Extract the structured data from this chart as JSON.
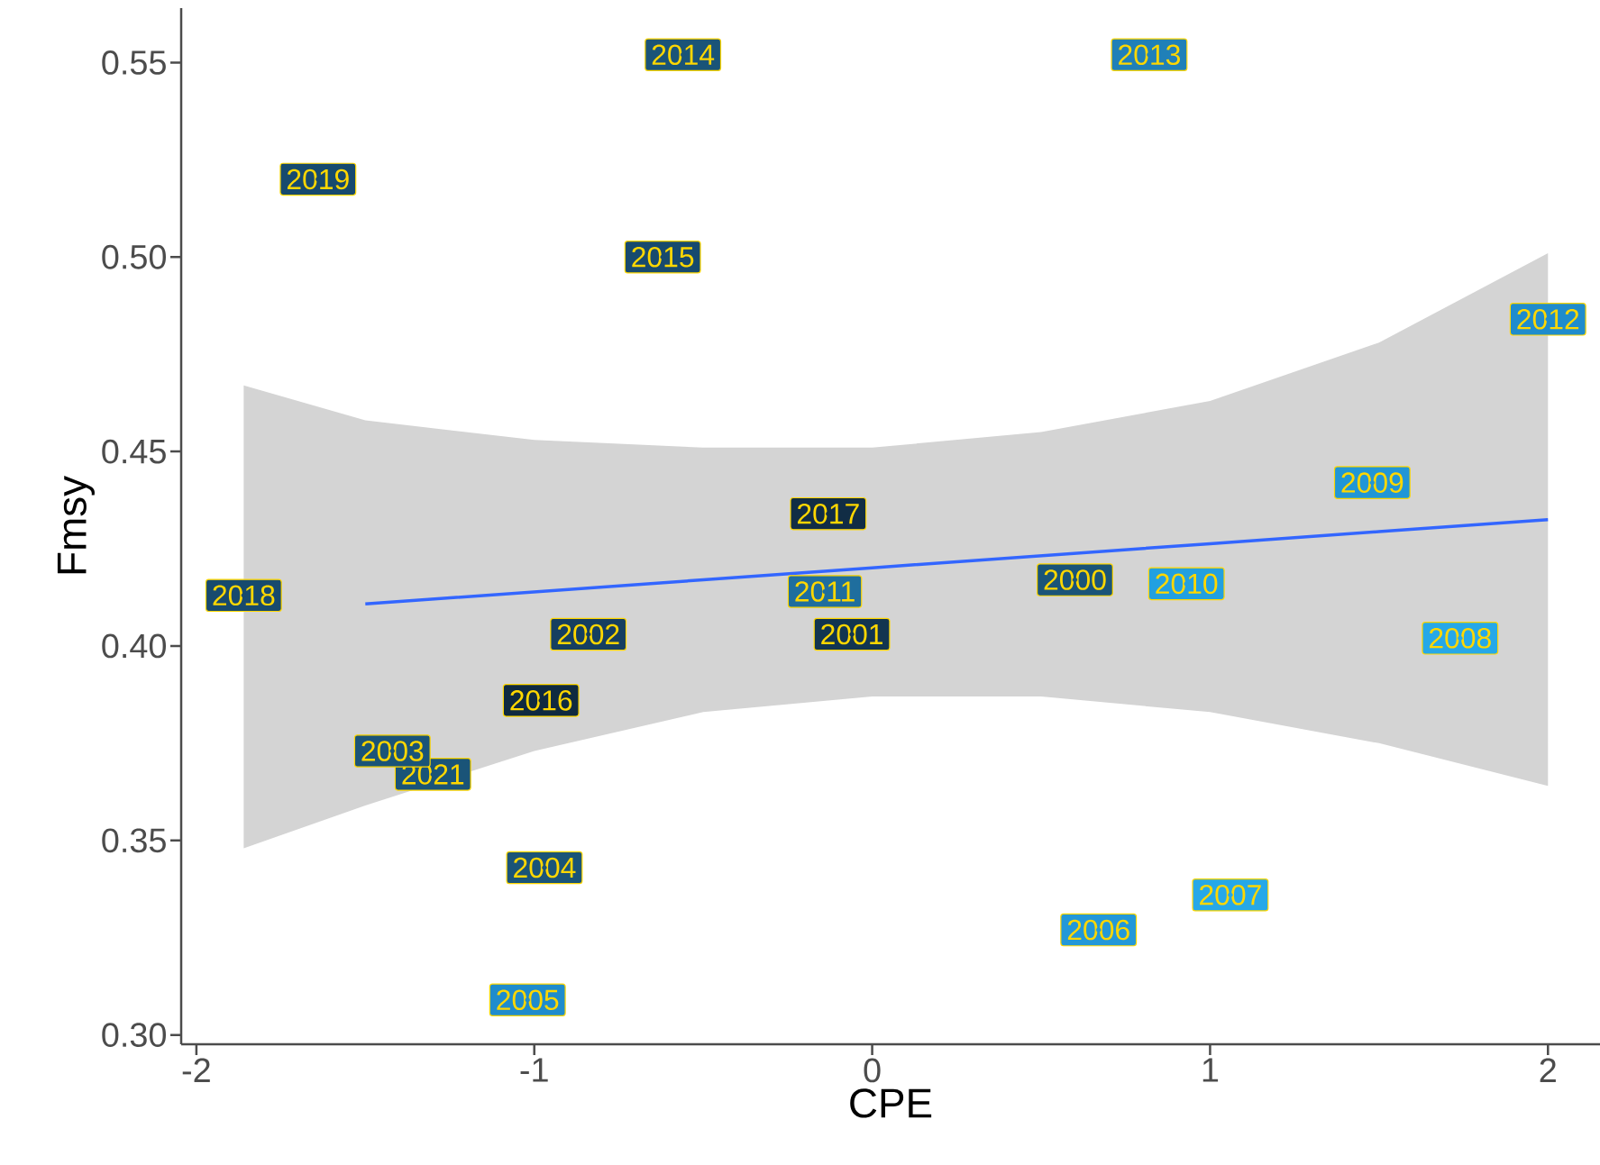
{
  "chart_data": {
    "type": "scatter",
    "xlabel": "CPE",
    "ylabel": "Fmsy",
    "xlim": [
      -2.045,
      2.154
    ],
    "ylim": [
      0.2976,
      0.564
    ],
    "xticks": [
      -2,
      -1,
      0,
      1,
      2
    ],
    "yticks": [
      {
        "value": 0.3,
        "label": "0.30"
      },
      {
        "value": 0.35,
        "label": "0.35"
      },
      {
        "value": 0.4,
        "label": "0.40"
      },
      {
        "value": 0.45,
        "label": "0.45"
      },
      {
        "value": 0.5,
        "label": "0.50"
      },
      {
        "value": 0.55,
        "label": "0.55"
      }
    ],
    "grid": false,
    "series": [
      {
        "type": "line",
        "color": "#3366ff",
        "x": [
          -1.86,
          -1.5,
          -1,
          -0.5,
          0,
          0.5,
          1,
          1.5,
          2
        ],
        "values": [
          null,
          0.4108,
          0.4139,
          0.417,
          0.4201,
          0.4232,
          0.4263,
          0.4294,
          0.4325
        ],
        "lower": [
          0.348,
          0.359,
          0.373,
          0.383,
          0.387,
          0.387,
          0.383,
          0.375,
          0.364
        ],
        "upper": [
          0.467,
          0.458,
          0.453,
          0.451,
          0.451,
          0.455,
          0.463,
          0.478,
          0.501
        ]
      },
      {
        "name": "2014",
        "color": "#1a5478",
        "x": [
          -0.56
        ],
        "values": [
          0.552
        ]
      },
      {
        "name": "2013",
        "color": "#2080b8",
        "x": [
          0.82
        ],
        "values": [
          0.552
        ]
      },
      {
        "name": "2019",
        "color": "#174a6e",
        "x": [
          -1.64
        ],
        "values": [
          0.52
        ]
      },
      {
        "name": "2015",
        "color": "#174a6e",
        "x": [
          -0.62
        ],
        "values": [
          0.5
        ]
      },
      {
        "name": "2012",
        "color": "#1f8ccc",
        "x": [
          2.0
        ],
        "values": [
          0.484
        ]
      },
      {
        "name": "2009",
        "color": "#2196d6",
        "x": [
          1.48
        ],
        "values": [
          0.442
        ]
      },
      {
        "name": "2017",
        "color": "#112d45",
        "x": [
          -0.13
        ],
        "values": [
          0.434
        ]
      },
      {
        "name": "2018",
        "color": "#174a6e",
        "x": [
          -1.86
        ],
        "values": [
          0.413
        ]
      },
      {
        "name": "2011",
        "color": "#1f6e9e",
        "x": [
          -0.14
        ],
        "values": [
          0.414
        ]
      },
      {
        "name": "2000",
        "color": "#1a5478",
        "x": [
          0.6
        ],
        "values": [
          0.417
        ]
      },
      {
        "name": "2010",
        "color": "#22a0e0",
        "x": [
          0.93
        ],
        "values": [
          0.416
        ]
      },
      {
        "name": "2008",
        "color": "#26a8e8",
        "x": [
          1.74
        ],
        "values": [
          0.402
        ]
      },
      {
        "name": "2002",
        "color": "#163f60",
        "x": [
          -0.84
        ],
        "values": [
          0.403
        ]
      },
      {
        "name": "2001",
        "color": "#123550",
        "x": [
          -0.06
        ],
        "values": [
          0.403
        ]
      },
      {
        "name": "2016",
        "color": "#0f2a40",
        "x": [
          -0.98
        ],
        "values": [
          0.386
        ]
      },
      {
        "name": "2003",
        "color": "#1a5478",
        "x": [
          -1.42
        ],
        "values": [
          0.373
        ]
      },
      {
        "name": "2021",
        "color": "#1a5478",
        "x": [
          -1.3
        ],
        "values": [
          0.367
        ]
      },
      {
        "name": "2004",
        "color": "#1a5478",
        "x": [
          -0.97
        ],
        "values": [
          0.343
        ]
      },
      {
        "name": "2007",
        "color": "#26a8e8",
        "x": [
          1.06
        ],
        "values": [
          0.336
        ]
      },
      {
        "name": "2006",
        "color": "#2398d8",
        "x": [
          0.67
        ],
        "values": [
          0.327
        ]
      },
      {
        "name": "2005",
        "color": "#1f8ccc",
        "x": [
          -1.02
        ],
        "values": [
          0.309
        ]
      }
    ]
  }
}
